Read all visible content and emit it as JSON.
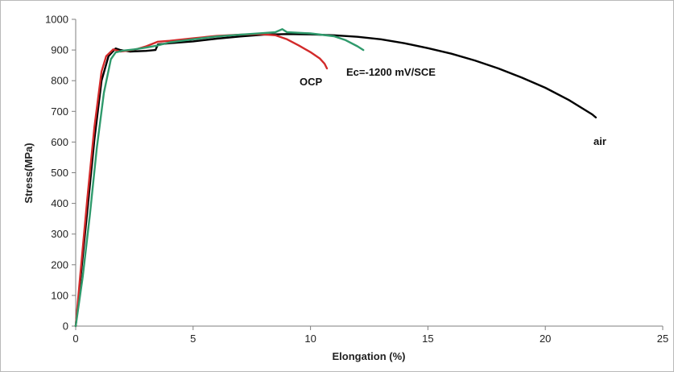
{
  "chart_data": {
    "type": "line",
    "title": "",
    "xlabel": "Elongation (%)",
    "ylabel": "Stress(MPa)",
    "xlim": [
      0,
      25
    ],
    "ylim": [
      0,
      1000
    ],
    "xticks": [
      0,
      5,
      10,
      15,
      20,
      25
    ],
    "yticks": [
      0,
      100,
      200,
      300,
      400,
      500,
      600,
      700,
      800,
      900,
      1000
    ],
    "grid": false,
    "legend": "none",
    "series": [
      {
        "name": "air",
        "color": "#000000",
        "points": [
          [
            0,
            0
          ],
          [
            0.2,
            150
          ],
          [
            0.5,
            380
          ],
          [
            0.8,
            610
          ],
          [
            1.1,
            800
          ],
          [
            1.4,
            880
          ],
          [
            1.7,
            905
          ],
          [
            1.9,
            900
          ],
          [
            2.3,
            895
          ],
          [
            3.0,
            897
          ],
          [
            3.4,
            900
          ],
          [
            3.5,
            918
          ],
          [
            4,
            922
          ],
          [
            5,
            928
          ],
          [
            6,
            937
          ],
          [
            7,
            944
          ],
          [
            8,
            950
          ],
          [
            9,
            952
          ],
          [
            10,
            951
          ],
          [
            11,
            948
          ],
          [
            12,
            943
          ],
          [
            13,
            935
          ],
          [
            14,
            922
          ],
          [
            15,
            906
          ],
          [
            16,
            888
          ],
          [
            17,
            866
          ],
          [
            18,
            840
          ],
          [
            19,
            810
          ],
          [
            20,
            777
          ],
          [
            21,
            737
          ],
          [
            22,
            690
          ],
          [
            22.15,
            680
          ]
        ]
      },
      {
        "name": "OCP",
        "color": "#d22a2a",
        "points": [
          [
            0,
            0
          ],
          [
            0.2,
            170
          ],
          [
            0.5,
            420
          ],
          [
            0.8,
            650
          ],
          [
            1.1,
            830
          ],
          [
            1.3,
            880
          ],
          [
            1.6,
            902
          ],
          [
            1.9,
            895
          ],
          [
            2.2,
            898
          ],
          [
            2.6,
            903
          ],
          [
            3.0,
            912
          ],
          [
            3.5,
            927
          ],
          [
            4,
            930
          ],
          [
            5,
            938
          ],
          [
            6,
            946
          ],
          [
            7,
            950
          ],
          [
            7.8,
            952
          ],
          [
            8.5,
            948
          ],
          [
            9.0,
            935
          ],
          [
            9.5,
            915
          ],
          [
            10.0,
            893
          ],
          [
            10.4,
            872
          ],
          [
            10.6,
            855
          ],
          [
            10.7,
            840
          ]
        ]
      },
      {
        "name": "Ec=-1200 mV/SCE",
        "color": "#2f9a6c",
        "points": [
          [
            0,
            0
          ],
          [
            0.3,
            160
          ],
          [
            0.6,
            360
          ],
          [
            0.9,
            580
          ],
          [
            1.2,
            760
          ],
          [
            1.5,
            870
          ],
          [
            1.7,
            892
          ],
          [
            2.0,
            898
          ],
          [
            2.5,
            902
          ],
          [
            3.0,
            908
          ],
          [
            3.5,
            915
          ],
          [
            4,
            925
          ],
          [
            5,
            935
          ],
          [
            6,
            944
          ],
          [
            7,
            950
          ],
          [
            8,
            955
          ],
          [
            8.5,
            958
          ],
          [
            8.8,
            968
          ],
          [
            9.0,
            958
          ],
          [
            10,
            954
          ],
          [
            11,
            945
          ],
          [
            11.5,
            932
          ],
          [
            12.0,
            912
          ],
          [
            12.25,
            900
          ]
        ]
      }
    ],
    "annotations": [
      {
        "text": "OCP",
        "series": "OCP"
      },
      {
        "text": "Ec=-1200 mV/SCE",
        "series": "Ec=-1200 mV/SCE"
      },
      {
        "text": "air",
        "series": "air"
      }
    ]
  }
}
